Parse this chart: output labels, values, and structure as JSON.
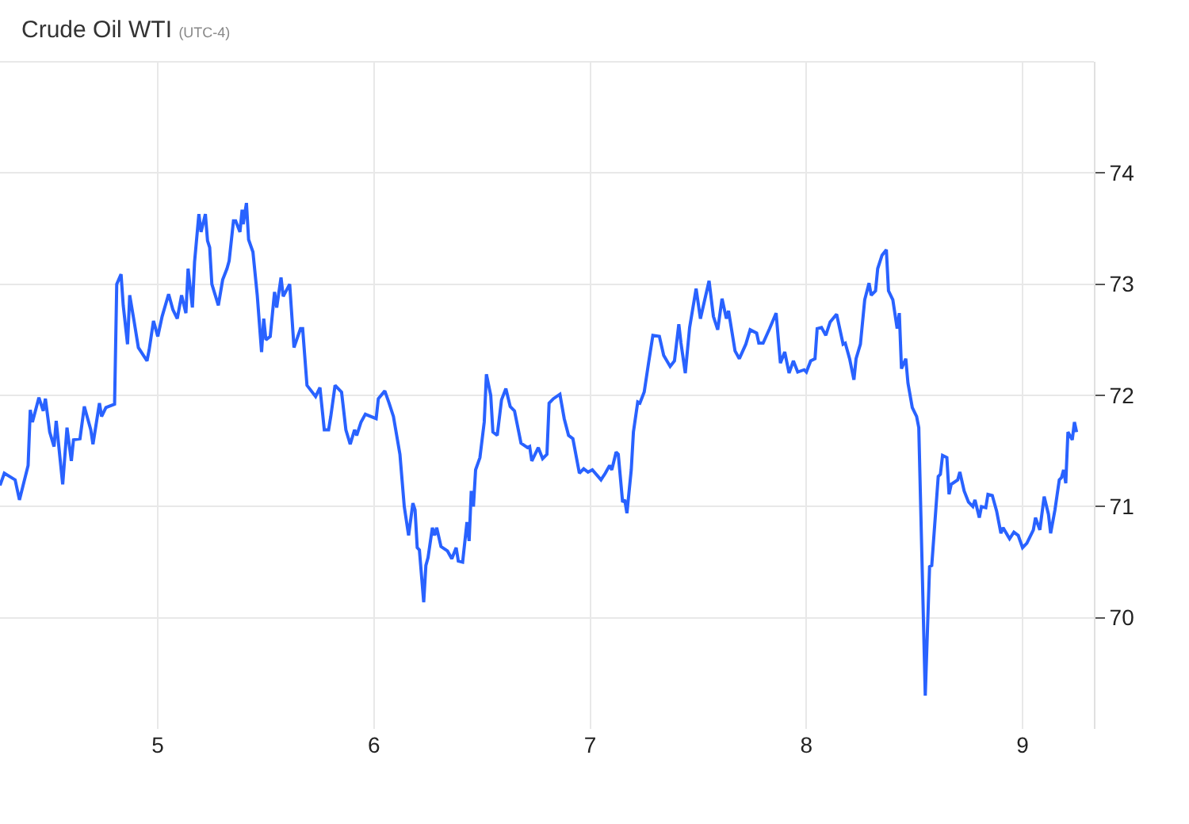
{
  "chart_data": {
    "type": "line",
    "title": "Crude Oil WTI",
    "subtitle": "(UTC-4)",
    "xlim": [
      4.27,
      9.33
    ],
    "xticks": [
      5,
      6,
      7,
      8,
      9
    ],
    "ylim": [
      69,
      75
    ],
    "yticks": [
      70,
      71,
      72,
      73,
      74
    ],
    "grid": true,
    "marker": "none",
    "line_style": "solid",
    "series": [
      {
        "color": "#2962ff",
        "x": [
          4.27,
          4.29,
          4.34,
          4.36,
          4.4,
          4.41,
          4.42,
          4.45,
          4.47,
          4.48,
          4.5,
          4.52,
          4.53,
          4.56,
          4.58,
          4.6,
          4.61,
          4.64,
          4.66,
          4.69,
          4.7,
          4.73,
          4.74,
          4.76,
          4.8,
          4.81,
          4.83,
          4.84,
          4.86,
          4.87,
          4.89,
          4.91,
          4.95,
          4.96,
          4.98,
          5.0,
          5.02,
          5.05,
          5.07,
          5.09,
          5.11,
          5.13,
          5.14,
          5.16,
          5.17,
          5.19,
          5.2,
          5.22,
          5.23,
          5.24,
          5.25,
          5.28,
          5.3,
          5.32,
          5.33,
          5.35,
          5.36,
          5.38,
          5.39,
          5.395,
          5.41,
          5.42,
          5.44,
          5.46,
          5.48,
          5.49,
          5.5,
          5.52,
          5.54,
          5.55,
          5.57,
          5.58,
          5.61,
          5.63,
          5.66,
          5.67,
          5.69,
          5.73,
          5.75,
          5.77,
          5.79,
          5.8,
          5.82,
          5.85,
          5.87,
          5.89,
          5.91,
          5.92,
          5.94,
          5.96,
          6.01,
          6.02,
          6.05,
          6.07,
          6.09,
          6.12,
          6.14,
          6.16,
          6.18,
          6.19,
          6.2,
          6.21,
          6.23,
          6.24,
          6.25,
          6.27,
          6.28,
          6.29,
          6.31,
          6.34,
          6.36,
          6.38,
          6.39,
          6.41,
          6.43,
          6.44,
          6.45,
          6.46,
          6.47,
          6.49,
          6.51,
          6.52,
          6.54,
          6.55,
          6.57,
          6.59,
          6.61,
          6.63,
          6.65,
          6.68,
          6.71,
          6.72,
          6.73,
          6.76,
          6.78,
          6.8,
          6.81,
          6.83,
          6.86,
          6.88,
          6.9,
          6.92,
          6.95,
          6.97,
          6.99,
          7.01,
          7.05,
          7.07,
          7.09,
          7.1,
          7.12,
          7.13,
          7.15,
          7.16,
          7.17,
          7.19,
          7.2,
          7.22,
          7.23,
          7.25,
          7.27,
          7.29,
          7.32,
          7.34,
          7.37,
          7.39,
          7.41,
          7.42,
          7.44,
          7.46,
          7.49,
          7.51,
          7.53,
          7.55,
          7.57,
          7.59,
          7.61,
          7.63,
          7.64,
          7.67,
          7.69,
          7.72,
          7.74,
          7.77,
          7.78,
          7.8,
          7.83,
          7.86,
          7.88,
          7.9,
          7.92,
          7.94,
          7.96,
          7.99,
          8.0,
          8.02,
          8.04,
          8.05,
          8.07,
          8.09,
          8.11,
          8.14,
          8.17,
          8.18,
          8.2,
          8.22,
          8.23,
          8.25,
          8.27,
          8.29,
          8.3,
          8.32,
          8.33,
          8.35,
          8.37,
          8.38,
          8.4,
          8.42,
          8.43,
          8.44,
          8.46,
          8.47,
          8.49,
          8.51,
          8.52,
          8.55,
          8.57,
          8.58,
          8.61,
          8.62,
          8.63,
          8.65,
          8.66,
          8.67,
          8.7,
          8.71,
          8.73,
          8.75,
          8.77,
          8.78,
          8.8,
          8.81,
          8.83,
          8.84,
          8.86,
          8.88,
          8.9,
          8.91,
          8.94,
          8.96,
          8.98,
          9.0,
          9.02,
          9.05,
          9.06,
          9.08,
          9.1,
          9.12,
          9.13,
          9.15,
          9.17,
          9.18,
          9.19,
          9.2,
          9.21,
          9.23,
          9.24,
          9.25
        ],
        "values": [
          71.19,
          71.3,
          71.24,
          71.06,
          71.37,
          71.87,
          71.76,
          71.98,
          71.86,
          71.97,
          71.67,
          71.54,
          71.77,
          71.2,
          71.71,
          71.41,
          71.6,
          71.61,
          71.9,
          71.69,
          71.56,
          71.93,
          71.81,
          71.89,
          71.92,
          73.0,
          73.09,
          72.81,
          72.46,
          72.9,
          72.67,
          72.43,
          72.31,
          72.41,
          72.67,
          72.53,
          72.71,
          72.91,
          72.77,
          72.69,
          72.9,
          72.74,
          73.14,
          72.79,
          73.2,
          73.63,
          73.47,
          73.63,
          73.39,
          73.33,
          73.0,
          72.81,
          73.04,
          73.14,
          73.21,
          73.57,
          73.57,
          73.47,
          73.67,
          73.54,
          73.73,
          73.4,
          73.29,
          72.9,
          72.39,
          72.69,
          72.5,
          72.53,
          72.93,
          72.79,
          73.06,
          72.89,
          73.0,
          72.43,
          72.6,
          72.6,
          72.09,
          71.99,
          72.07,
          71.69,
          71.69,
          71.81,
          72.09,
          72.03,
          71.69,
          71.56,
          71.69,
          71.64,
          71.76,
          71.83,
          71.79,
          71.97,
          72.04,
          71.93,
          71.81,
          71.47,
          71.0,
          70.74,
          71.03,
          70.97,
          70.63,
          70.61,
          70.14,
          70.47,
          70.54,
          70.81,
          70.74,
          70.81,
          70.64,
          70.6,
          70.53,
          70.63,
          70.51,
          70.5,
          70.86,
          70.69,
          71.14,
          71.0,
          71.33,
          71.44,
          71.76,
          72.19,
          72.0,
          71.67,
          71.64,
          71.96,
          72.06,
          71.9,
          71.86,
          71.57,
          71.53,
          71.54,
          71.41,
          71.53,
          71.43,
          71.47,
          71.93,
          71.97,
          72.01,
          71.79,
          71.64,
          71.61,
          71.3,
          71.34,
          71.31,
          71.33,
          71.24,
          71.3,
          71.37,
          71.33,
          71.49,
          71.47,
          71.04,
          71.06,
          70.94,
          71.33,
          71.67,
          71.94,
          71.93,
          72.03,
          72.29,
          72.54,
          72.53,
          72.36,
          72.26,
          72.31,
          72.64,
          72.47,
          72.2,
          72.61,
          72.96,
          72.69,
          72.86,
          73.03,
          72.71,
          72.59,
          72.87,
          72.69,
          72.76,
          72.4,
          72.33,
          72.46,
          72.59,
          72.56,
          72.47,
          72.47,
          72.6,
          72.74,
          72.29,
          72.39,
          72.2,
          72.31,
          72.21,
          72.23,
          72.21,
          72.31,
          72.33,
          72.6,
          72.61,
          72.54,
          72.66,
          72.73,
          72.46,
          72.47,
          72.33,
          72.14,
          72.33,
          72.46,
          72.86,
          73.01,
          72.9,
          72.94,
          73.14,
          73.26,
          73.31,
          72.94,
          72.86,
          72.6,
          72.74,
          72.24,
          72.33,
          72.11,
          71.89,
          71.81,
          71.71,
          69.3,
          70.46,
          70.47,
          71.27,
          71.29,
          71.46,
          71.44,
          71.11,
          71.2,
          71.24,
          71.31,
          71.14,
          71.04,
          71.0,
          71.06,
          70.9,
          71.0,
          70.99,
          71.11,
          71.1,
          70.96,
          70.76,
          70.81,
          70.71,
          70.77,
          70.74,
          70.63,
          70.67,
          70.79,
          70.9,
          70.79,
          71.09,
          70.93,
          70.76,
          70.97,
          71.24,
          71.26,
          71.33,
          71.21,
          71.67,
          71.6,
          71.76,
          71.67
        ]
      }
    ]
  }
}
